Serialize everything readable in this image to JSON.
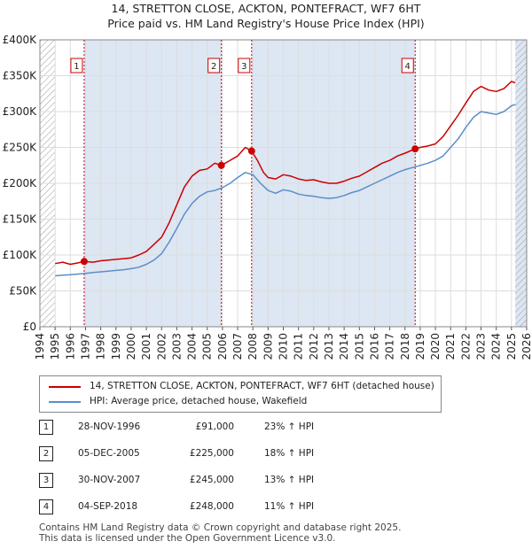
{
  "title_line1": "14, STRETTON CLOSE, ACKTON, PONTEFRACT, WF7 6HT",
  "title_line2": "Price paid vs. HM Land Registry's House Price Index (HPI)",
  "legend": {
    "property": "14, STRETTON CLOSE, ACKTON, PONTEFRACT, WF7 6HT (detached house)",
    "hpi": "HPI: Average price, detached house, Wakefield"
  },
  "sales": [
    {
      "num": "1",
      "date": "28-NOV-1996",
      "price": "£91,000",
      "hpi": "23% ↑ HPI"
    },
    {
      "num": "2",
      "date": "05-DEC-2005",
      "price": "£225,000",
      "hpi": "18% ↑ HPI"
    },
    {
      "num": "3",
      "date": "30-NOV-2007",
      "price": "£245,000",
      "hpi": "13% ↑ HPI"
    },
    {
      "num": "4",
      "date": "04-SEP-2018",
      "price": "£248,000",
      "hpi": "11% ↑ HPI"
    }
  ],
  "footer_line1": "Contains HM Land Registry data © Crown copyright and database right 2025.",
  "footer_line2": "This data is licensed under the Open Government Licence v3.0.",
  "colors": {
    "property": "#cc0000",
    "hpi": "#5b8ec9",
    "shade": "#dde6f3",
    "hatch": "#999999"
  },
  "chart_data": {
    "type": "line",
    "xlim": [
      1994,
      2026
    ],
    "ylim": [
      0,
      400000
    ],
    "x_ticks": [
      "1994",
      "1995",
      "1996",
      "1997",
      "1998",
      "1999",
      "2000",
      "2001",
      "2002",
      "2003",
      "2004",
      "2005",
      "2006",
      "2007",
      "2008",
      "2009",
      "2010",
      "2011",
      "2012",
      "2013",
      "2014",
      "2015",
      "2016",
      "2017",
      "2018",
      "2019",
      "2020",
      "2021",
      "2022",
      "2023",
      "2024",
      "2025",
      "2026"
    ],
    "y_ticks": [
      0,
      50000,
      100000,
      150000,
      200000,
      250000,
      300000,
      350000,
      400000
    ],
    "y_tick_labels": [
      "£0",
      "£50K",
      "£100K",
      "£150K",
      "£200K",
      "£250K",
      "£300K",
      "£350K",
      "£400K"
    ],
    "data_start": 1995.0,
    "data_end": 2025.25,
    "series": [
      {
        "name": "property",
        "points": [
          [
            1995.0,
            88000
          ],
          [
            1995.5,
            90000
          ],
          [
            1996.0,
            87000
          ],
          [
            1996.5,
            89000
          ],
          [
            1996.9,
            91000
          ],
          [
            1997.5,
            90000
          ],
          [
            1998.0,
            92000
          ],
          [
            1998.5,
            93000
          ],
          [
            1999.0,
            94000
          ],
          [
            1999.5,
            95000
          ],
          [
            2000.0,
            96000
          ],
          [
            2000.5,
            100000
          ],
          [
            2001.0,
            105000
          ],
          [
            2001.5,
            115000
          ],
          [
            2002.0,
            125000
          ],
          [
            2002.5,
            145000
          ],
          [
            2003.0,
            170000
          ],
          [
            2003.5,
            195000
          ],
          [
            2004.0,
            210000
          ],
          [
            2004.5,
            218000
          ],
          [
            2005.0,
            220000
          ],
          [
            2005.5,
            228000
          ],
          [
            2005.93,
            225000
          ],
          [
            2006.5,
            232000
          ],
          [
            2007.0,
            238000
          ],
          [
            2007.5,
            250000
          ],
          [
            2007.92,
            245000
          ],
          [
            2008.3,
            232000
          ],
          [
            2008.7,
            215000
          ],
          [
            2009.0,
            208000
          ],
          [
            2009.5,
            206000
          ],
          [
            2010.0,
            212000
          ],
          [
            2010.5,
            210000
          ],
          [
            2011.0,
            206000
          ],
          [
            2011.5,
            204000
          ],
          [
            2012.0,
            205000
          ],
          [
            2012.5,
            202000
          ],
          [
            2013.0,
            200000
          ],
          [
            2013.5,
            200000
          ],
          [
            2014.0,
            203000
          ],
          [
            2014.5,
            207000
          ],
          [
            2015.0,
            210000
          ],
          [
            2015.5,
            216000
          ],
          [
            2016.0,
            222000
          ],
          [
            2016.5,
            228000
          ],
          [
            2017.0,
            232000
          ],
          [
            2017.5,
            238000
          ],
          [
            2018.0,
            242000
          ],
          [
            2018.67,
            248000
          ],
          [
            2019.0,
            250000
          ],
          [
            2019.5,
            252000
          ],
          [
            2020.0,
            255000
          ],
          [
            2020.5,
            265000
          ],
          [
            2021.0,
            280000
          ],
          [
            2021.5,
            295000
          ],
          [
            2022.0,
            312000
          ],
          [
            2022.5,
            328000
          ],
          [
            2023.0,
            335000
          ],
          [
            2023.5,
            330000
          ],
          [
            2024.0,
            328000
          ],
          [
            2024.5,
            332000
          ],
          [
            2025.0,
            342000
          ],
          [
            2025.25,
            340000
          ]
        ]
      },
      {
        "name": "hpi",
        "points": [
          [
            1995.0,
            71000
          ],
          [
            1995.5,
            72000
          ],
          [
            1996.0,
            72500
          ],
          [
            1996.5,
            73500
          ],
          [
            1997.0,
            74500
          ],
          [
            1997.5,
            75500
          ],
          [
            1998.0,
            76500
          ],
          [
            1998.5,
            77500
          ],
          [
            1999.0,
            78500
          ],
          [
            1999.5,
            79500
          ],
          [
            2000.0,
            81000
          ],
          [
            2000.5,
            83000
          ],
          [
            2001.0,
            87000
          ],
          [
            2001.5,
            93000
          ],
          [
            2002.0,
            102000
          ],
          [
            2002.5,
            118000
          ],
          [
            2003.0,
            137000
          ],
          [
            2003.5,
            157000
          ],
          [
            2004.0,
            172000
          ],
          [
            2004.5,
            182000
          ],
          [
            2005.0,
            188000
          ],
          [
            2005.5,
            190000
          ],
          [
            2006.0,
            194000
          ],
          [
            2006.5,
            200000
          ],
          [
            2007.0,
            208000
          ],
          [
            2007.5,
            215000
          ],
          [
            2008.0,
            212000
          ],
          [
            2008.5,
            200000
          ],
          [
            2009.0,
            190000
          ],
          [
            2009.5,
            186000
          ],
          [
            2010.0,
            191000
          ],
          [
            2010.5,
            189000
          ],
          [
            2011.0,
            185000
          ],
          [
            2011.5,
            183000
          ],
          [
            2012.0,
            182000
          ],
          [
            2012.5,
            180000
          ],
          [
            2013.0,
            179000
          ],
          [
            2013.5,
            180000
          ],
          [
            2014.0,
            183000
          ],
          [
            2014.5,
            187000
          ],
          [
            2015.0,
            190000
          ],
          [
            2015.5,
            195000
          ],
          [
            2016.0,
            200000
          ],
          [
            2016.5,
            205000
          ],
          [
            2017.0,
            210000
          ],
          [
            2017.5,
            215000
          ],
          [
            2018.0,
            219000
          ],
          [
            2018.5,
            222000
          ],
          [
            2019.0,
            225000
          ],
          [
            2019.5,
            228000
          ],
          [
            2020.0,
            232000
          ],
          [
            2020.5,
            238000
          ],
          [
            2021.0,
            250000
          ],
          [
            2021.5,
            262000
          ],
          [
            2022.0,
            278000
          ],
          [
            2022.5,
            292000
          ],
          [
            2023.0,
            300000
          ],
          [
            2023.5,
            298000
          ],
          [
            2024.0,
            296000
          ],
          [
            2024.5,
            300000
          ],
          [
            2025.0,
            308000
          ],
          [
            2025.25,
            310000
          ]
        ]
      }
    ],
    "markers": [
      {
        "num": "1",
        "x": 1996.91,
        "y": 91000
      },
      {
        "num": "2",
        "x": 2005.93,
        "y": 225000
      },
      {
        "num": "3",
        "x": 2007.92,
        "y": 245000
      },
      {
        "num": "4",
        "x": 2018.67,
        "y": 248000
      }
    ]
  }
}
